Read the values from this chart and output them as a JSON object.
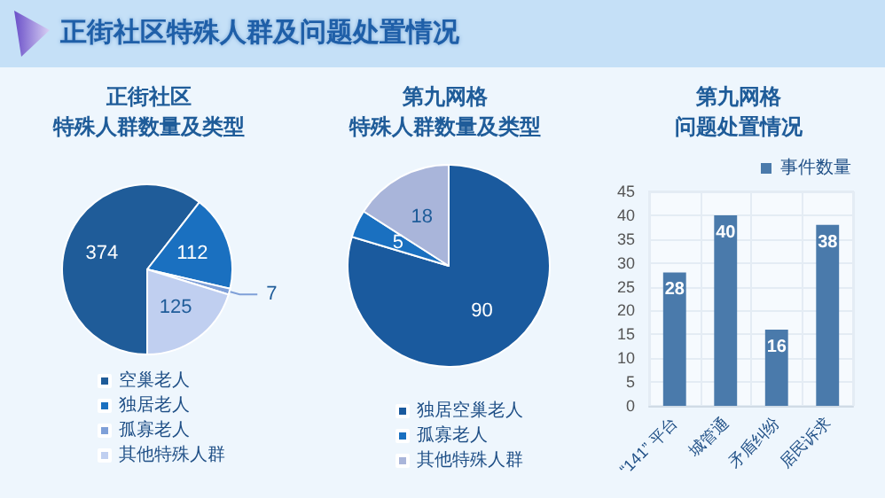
{
  "chart_data": [
    {
      "type": "other",
      "title": "正街社区特殊人群及问题处置情况"
    },
    {
      "type": "pie",
      "title": "正街社区",
      "subtitle": "特殊人群数量及类型",
      "categories": [
        "空巢老人",
        "独居老人",
        "孤寡老人",
        "其他特殊人群"
      ],
      "values": [
        374,
        112,
        7,
        125
      ],
      "colors": [
        "#1f5c99",
        "#1a70c0",
        "#7fa0d8",
        "#c0cff0"
      ],
      "data_labels": true,
      "legend": "bottom"
    },
    {
      "type": "pie",
      "title": "第九网格",
      "subtitle": "特殊人群数量及类型",
      "categories": [
        "独居空巢老人",
        "孤寡老人",
        "其他特殊人群"
      ],
      "values": [
        90,
        5,
        18
      ],
      "colors": [
        "#1a5a9e",
        "#1a70c0",
        "#a9b5da"
      ],
      "data_labels": true,
      "legend": "bottom"
    },
    {
      "type": "bar",
      "title": "第九网格",
      "subtitle": "问题处置情况",
      "categories": [
        "“141” 平台",
        "城管通",
        "矛盾纠纷",
        "居民诉求"
      ],
      "series": [
        {
          "name": "事件数量",
          "color": "#4a7aab",
          "values": [
            28,
            40,
            16,
            38
          ]
        }
      ],
      "ylim": [
        0,
        45
      ],
      "yticks": [
        0,
        5,
        10,
        15,
        20,
        25,
        30,
        35,
        40,
        45
      ],
      "grid": true,
      "legend": "top right",
      "data_labels": true
    }
  ]
}
